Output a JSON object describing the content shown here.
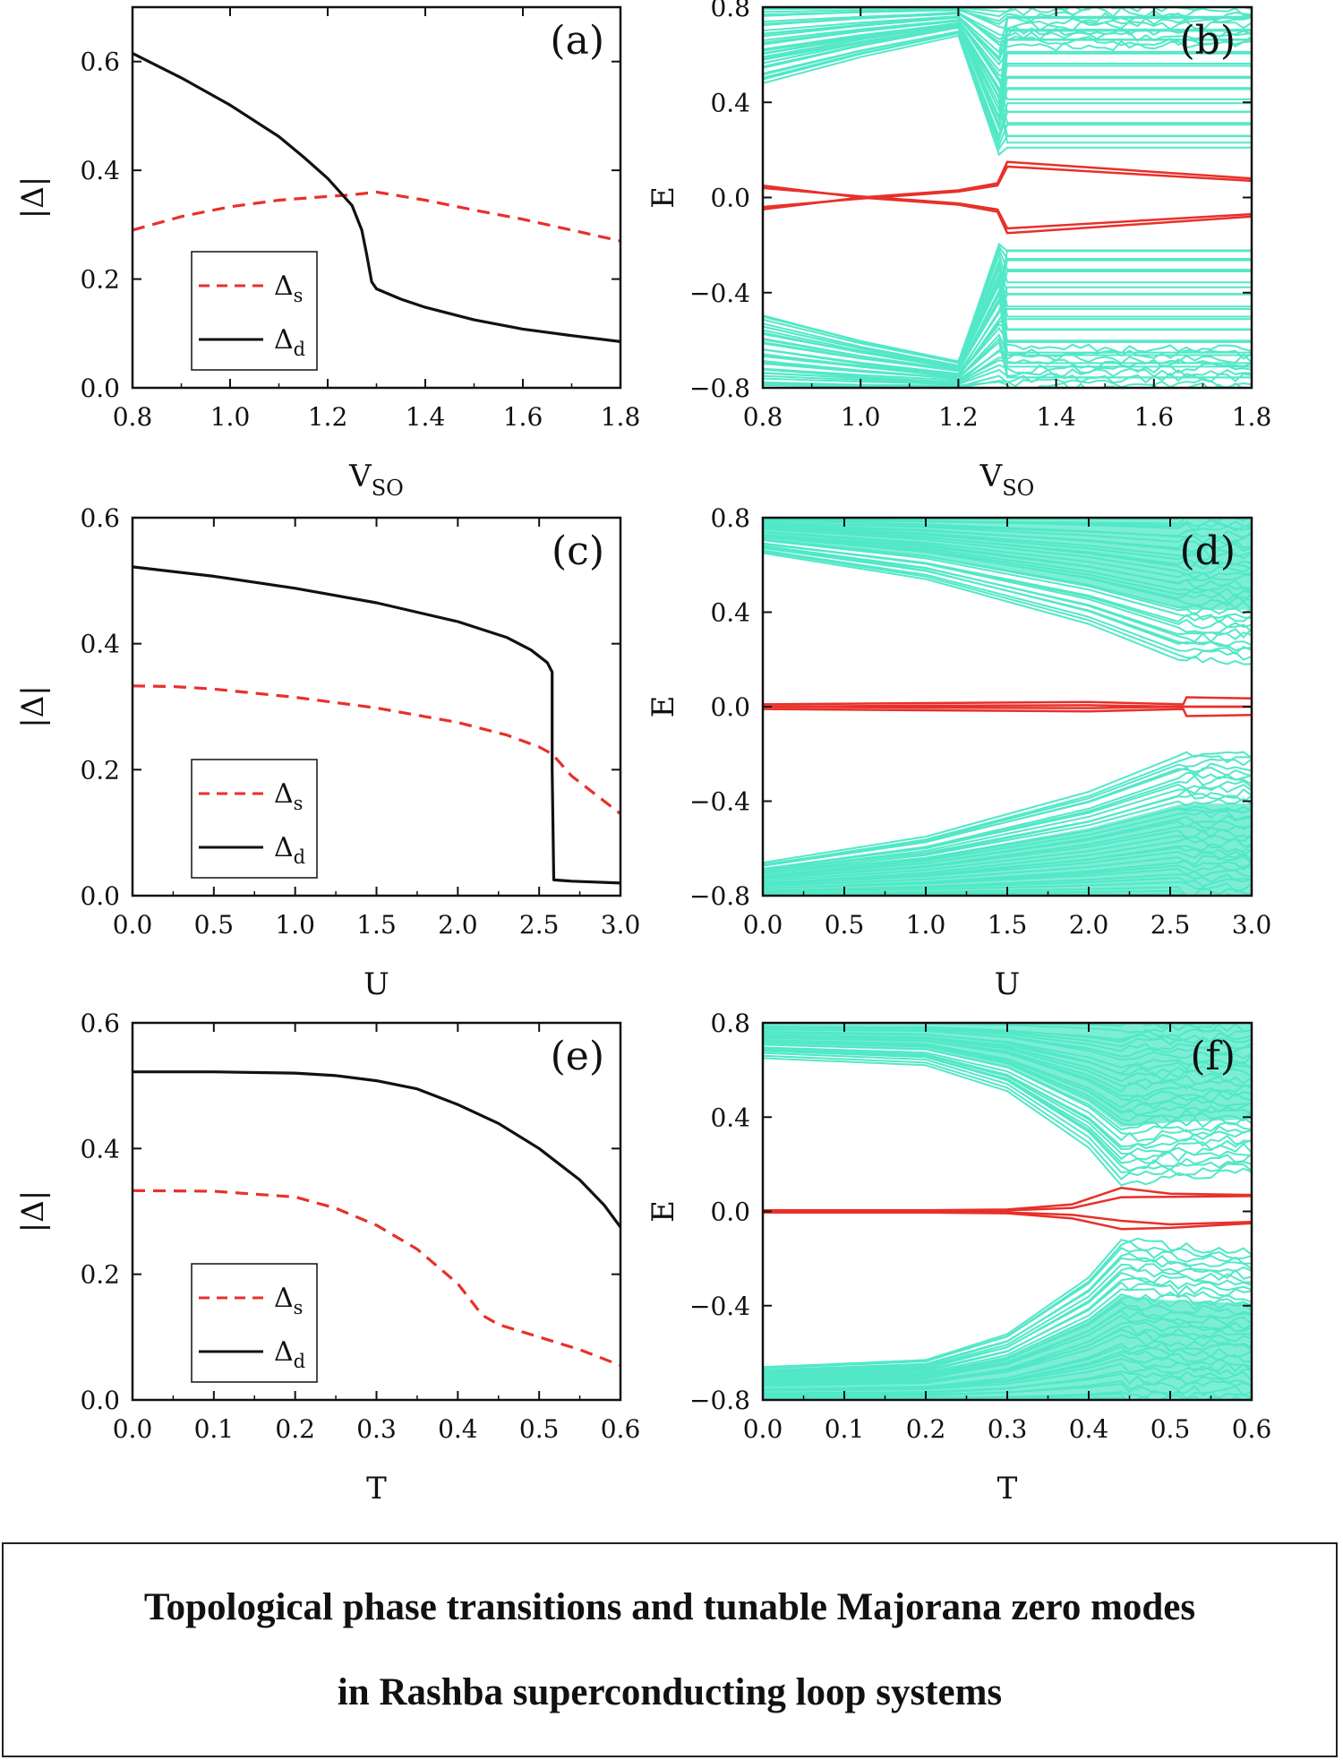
{
  "chart_data": [
    {
      "id": "a",
      "type": "line",
      "panel_label": "(a)",
      "xlabel": "V",
      "xlabel_sub": "SO",
      "ylabel": "|Δ|",
      "xlim": [
        0.8,
        1.8
      ],
      "ylim": [
        0.0,
        0.7
      ],
      "xticks": [
        0.8,
        1.0,
        1.2,
        1.4,
        1.6,
        1.8
      ],
      "xtick_labels": [
        "0.8",
        "1.0",
        "1.2",
        "1.4",
        "1.6",
        "1.8"
      ],
      "yticks": [
        0.0,
        0.2,
        0.4,
        0.6
      ],
      "ytick_labels": [
        "0.0",
        "0.2",
        "0.4",
        "0.6"
      ],
      "legend_position": "bottom-left",
      "series": [
        {
          "name": "Δ",
          "name_sub": "s",
          "color": "#e8302a",
          "style": "dashed",
          "x": [
            0.8,
            0.9,
            1.0,
            1.1,
            1.2,
            1.25,
            1.3,
            1.4,
            1.5,
            1.6,
            1.7,
            1.8
          ],
          "y": [
            0.29,
            0.315,
            0.333,
            0.345,
            0.352,
            0.355,
            0.36,
            0.345,
            0.327,
            0.31,
            0.29,
            0.27
          ]
        },
        {
          "name": "Δ",
          "name_sub": "d",
          "color": "#111111",
          "style": "solid",
          "x": [
            0.8,
            0.9,
            1.0,
            1.1,
            1.15,
            1.2,
            1.25,
            1.27,
            1.28,
            1.29,
            1.3,
            1.35,
            1.4,
            1.5,
            1.6,
            1.7,
            1.8
          ],
          "y": [
            0.615,
            0.57,
            0.52,
            0.462,
            0.425,
            0.385,
            0.335,
            0.29,
            0.245,
            0.195,
            0.182,
            0.163,
            0.148,
            0.125,
            0.108,
            0.096,
            0.085
          ]
        }
      ]
    },
    {
      "id": "b",
      "type": "line",
      "panel_label": "(b)",
      "xlabel": "V",
      "xlabel_sub": "SO",
      "ylabel": "E",
      "xlim": [
        0.8,
        1.8
      ],
      "ylim": [
        -0.8,
        0.8
      ],
      "xticks": [
        0.8,
        1.0,
        1.2,
        1.4,
        1.6,
        1.8
      ],
      "xtick_labels": [
        "0.8",
        "1.0",
        "1.2",
        "1.4",
        "1.6",
        "1.8"
      ],
      "yticks": [
        -0.8,
        -0.4,
        0.0,
        0.4,
        0.8
      ],
      "ytick_labels": [
        "−0.8",
        "−0.4",
        "0.0",
        "0.4",
        "0.8"
      ],
      "band_color": "#52e8c7",
      "zero_mode_color": "#e8302a",
      "band_transition_x": 1.29,
      "gap_edge": {
        "x": [
          0.8,
          1.0,
          1.2,
          1.29
        ],
        "y": [
          0.49,
          0.6,
          0.69,
          0.15
        ]
      },
      "bulk_levels_after": [
        0.22,
        0.26,
        0.31,
        0.36,
        0.4,
        0.45,
        0.5,
        0.55,
        0.6,
        0.65,
        0.7,
        0.75
      ],
      "series": [
        {
          "name": "",
          "color": "#e8302a",
          "x": [
            0.8,
            1.0,
            1.2,
            1.28,
            1.3,
            1.8
          ],
          "y": [
            0.05,
            0.0,
            -0.03,
            -0.06,
            -0.15,
            -0.08
          ]
        },
        {
          "name": "",
          "color": "#e8302a",
          "x": [
            0.8,
            1.0,
            1.2,
            1.28,
            1.3,
            1.8
          ],
          "y": [
            -0.05,
            0.0,
            0.03,
            0.06,
            0.15,
            0.08
          ]
        },
        {
          "name": "",
          "color": "#e8302a",
          "x": [
            0.8,
            1.0,
            1.2,
            1.28,
            1.3,
            1.8
          ],
          "y": [
            0.04,
            0.005,
            -0.025,
            -0.05,
            -0.13,
            -0.07
          ]
        },
        {
          "name": "",
          "color": "#e8302a",
          "x": [
            0.8,
            1.0,
            1.2,
            1.28,
            1.3,
            1.8
          ],
          "y": [
            -0.04,
            -0.005,
            0.025,
            0.05,
            0.13,
            0.07
          ]
        }
      ]
    },
    {
      "id": "c",
      "type": "line",
      "panel_label": "(c)",
      "xlabel": "U",
      "ylabel": "|Δ|",
      "xlim": [
        0.0,
        3.0
      ],
      "ylim": [
        0.0,
        0.6
      ],
      "xticks": [
        0.0,
        0.5,
        1.0,
        1.5,
        2.0,
        2.5,
        3.0
      ],
      "xtick_labels": [
        "0.0",
        "0.5",
        "1.0",
        "1.5",
        "2.0",
        "2.5",
        "3.0"
      ],
      "yticks": [
        0.0,
        0.2,
        0.4,
        0.6
      ],
      "ytick_labels": [
        "0.0",
        "0.2",
        "0.4",
        "0.6"
      ],
      "legend_position": "bottom-left",
      "series": [
        {
          "name": "Δ",
          "name_sub": "s",
          "color": "#e8302a",
          "style": "dashed",
          "x": [
            0.0,
            0.25,
            0.5,
            1.0,
            1.5,
            2.0,
            2.3,
            2.5,
            2.58,
            2.7,
            2.85,
            3.0
          ],
          "y": [
            0.333,
            0.332,
            0.328,
            0.315,
            0.298,
            0.275,
            0.255,
            0.236,
            0.225,
            0.19,
            0.16,
            0.13
          ]
        },
        {
          "name": "Δ",
          "name_sub": "d",
          "color": "#111111",
          "style": "solid",
          "x": [
            0.0,
            0.5,
            1.0,
            1.5,
            2.0,
            2.3,
            2.45,
            2.55,
            2.58,
            2.58,
            2.59,
            2.7,
            3.0
          ],
          "y": [
            0.522,
            0.507,
            0.488,
            0.465,
            0.435,
            0.41,
            0.39,
            0.37,
            0.355,
            0.2,
            0.025,
            0.023,
            0.02
          ]
        }
      ]
    },
    {
      "id": "d",
      "type": "line",
      "panel_label": "(d)",
      "xlabel": "U",
      "ylabel": "E",
      "xlim": [
        0.0,
        3.0
      ],
      "ylim": [
        -0.8,
        0.8
      ],
      "xticks": [
        0.0,
        0.5,
        1.0,
        1.5,
        2.0,
        2.5,
        3.0
      ],
      "xtick_labels": [
        "0.0",
        "0.5",
        "1.0",
        "1.5",
        "2.0",
        "2.5",
        "3.0"
      ],
      "yticks": [
        -0.8,
        -0.4,
        0.0,
        0.4,
        0.8
      ],
      "ytick_labels": [
        "−0.8",
        "−0.4",
        "0.0",
        "0.4",
        "0.8"
      ],
      "band_color": "#52e8c7",
      "zero_mode_color": "#e8302a",
      "band_transition_x": 2.58,
      "gap_edge": {
        "x": [
          0.0,
          1.0,
          2.0,
          2.58
        ],
        "y": [
          0.66,
          0.55,
          0.36,
          0.2
        ]
      },
      "series": [
        {
          "name": "",
          "color": "#e8302a",
          "x": [
            0.0,
            1.0,
            2.0,
            2.58,
            2.6,
            3.0
          ],
          "y": [
            0.01,
            0.015,
            0.02,
            0.01,
            0.04,
            0.035
          ]
        },
        {
          "name": "",
          "color": "#e8302a",
          "x": [
            0.0,
            1.0,
            2.0,
            2.58,
            2.6,
            3.0
          ],
          "y": [
            -0.01,
            -0.015,
            -0.02,
            -0.01,
            -0.04,
            -0.035
          ]
        },
        {
          "name": "",
          "color": "#e8302a",
          "x": [
            0.0,
            1.0,
            2.0,
            2.58,
            3.0
          ],
          "y": [
            0.0,
            0.004,
            0.006,
            0.0,
            0.0
          ]
        },
        {
          "name": "",
          "color": "#e8302a",
          "x": [
            0.0,
            1.0,
            2.0,
            2.58,
            3.0
          ],
          "y": [
            0.0,
            -0.004,
            -0.006,
            0.0,
            0.0
          ]
        }
      ]
    },
    {
      "id": "e",
      "type": "line",
      "panel_label": "(e)",
      "xlabel": "T",
      "ylabel": "|Δ|",
      "xlim": [
        0.0,
        0.6
      ],
      "ylim": [
        0.0,
        0.6
      ],
      "xticks": [
        0.0,
        0.1,
        0.2,
        0.3,
        0.4,
        0.5,
        0.6
      ],
      "xtick_labels": [
        "0.0",
        "0.1",
        "0.2",
        "0.3",
        "0.4",
        "0.5",
        "0.6"
      ],
      "yticks": [
        0.0,
        0.2,
        0.4,
        0.6
      ],
      "ytick_labels": [
        "0.0",
        "0.2",
        "0.4",
        "0.6"
      ],
      "legend_position": "bottom-left",
      "series": [
        {
          "name": "Δ",
          "name_sub": "s",
          "color": "#e8302a",
          "style": "dashed",
          "x": [
            0.0,
            0.1,
            0.2,
            0.25,
            0.3,
            0.35,
            0.4,
            0.43,
            0.45,
            0.5,
            0.55,
            0.6
          ],
          "y": [
            0.333,
            0.332,
            0.323,
            0.305,
            0.278,
            0.24,
            0.185,
            0.135,
            0.12,
            0.1,
            0.08,
            0.055
          ]
        },
        {
          "name": "Δ",
          "name_sub": "d",
          "color": "#111111",
          "style": "solid",
          "x": [
            0.0,
            0.1,
            0.2,
            0.25,
            0.3,
            0.35,
            0.4,
            0.45,
            0.5,
            0.55,
            0.58,
            0.6
          ],
          "y": [
            0.522,
            0.522,
            0.52,
            0.516,
            0.508,
            0.495,
            0.47,
            0.44,
            0.4,
            0.35,
            0.31,
            0.275
          ]
        }
      ]
    },
    {
      "id": "f",
      "type": "line",
      "panel_label": "(f)",
      "xlabel": "T",
      "ylabel": "E",
      "xlim": [
        0.0,
        0.6
      ],
      "ylim": [
        -0.8,
        0.8
      ],
      "xticks": [
        0.0,
        0.1,
        0.2,
        0.3,
        0.4,
        0.5,
        0.6
      ],
      "xtick_labels": [
        "0.0",
        "0.1",
        "0.2",
        "0.3",
        "0.4",
        "0.5",
        "0.6"
      ],
      "yticks": [
        -0.8,
        -0.4,
        0.0,
        0.4,
        0.8
      ],
      "ytick_labels": [
        "−0.8",
        "−0.4",
        "0.0",
        "0.4",
        "0.8"
      ],
      "band_color": "#52e8c7",
      "zero_mode_color": "#e8302a",
      "band_transition_x": 0.44,
      "gap_edge": {
        "x": [
          0.0,
          0.2,
          0.3,
          0.4,
          0.44,
          0.5,
          0.6
        ],
        "y": [
          0.66,
          0.63,
          0.52,
          0.28,
          0.12,
          0.15,
          0.17
        ]
      },
      "series": [
        {
          "name": "",
          "color": "#e8302a",
          "x": [
            0.0,
            0.2,
            0.3,
            0.38,
            0.44,
            0.5,
            0.6
          ],
          "y": [
            0.005,
            0.005,
            0.008,
            0.03,
            0.1,
            0.075,
            0.07
          ]
        },
        {
          "name": "",
          "color": "#e8302a",
          "x": [
            0.0,
            0.2,
            0.3,
            0.38,
            0.44,
            0.5,
            0.6
          ],
          "y": [
            -0.005,
            -0.005,
            -0.008,
            -0.03,
            -0.075,
            -0.07,
            -0.05
          ]
        },
        {
          "name": "",
          "color": "#e8302a",
          "x": [
            0.0,
            0.2,
            0.3,
            0.38,
            0.44,
            0.5,
            0.6
          ],
          "y": [
            0.0,
            0.0,
            0.004,
            0.015,
            0.06,
            0.062,
            0.065
          ]
        },
        {
          "name": "",
          "color": "#e8302a",
          "x": [
            0.0,
            0.2,
            0.3,
            0.38,
            0.44,
            0.5,
            0.6
          ],
          "y": [
            0.0,
            0.0,
            -0.004,
            -0.015,
            -0.04,
            -0.055,
            -0.045
          ]
        }
      ]
    }
  ],
  "caption": {
    "line1": "Topological phase transitions and tunable Majorana zero modes",
    "line2": "in Rashba superconducting loop systems"
  }
}
